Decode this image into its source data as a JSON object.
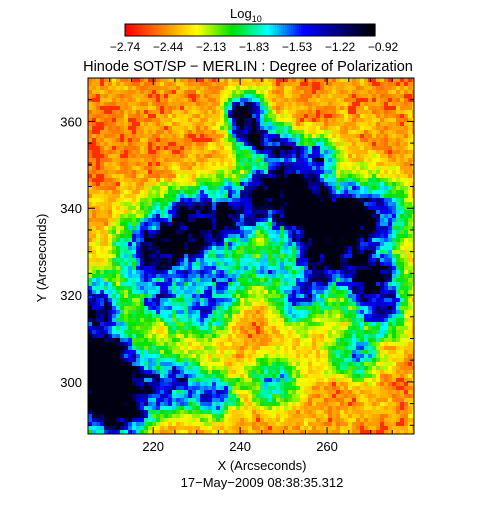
{
  "chart_data": {
    "type": "heatmap",
    "title": "Hinode SOT/SP − MERLIN : Degree of Polarization",
    "colorbar": {
      "label_base": "Log",
      "label_subscript": "10",
      "tick_labels": [
        "−2.74",
        "−2.44",
        "−2.13",
        "−1.83",
        "−1.53",
        "−1.22",
        "−0.92"
      ],
      "range": [
        -2.74,
        -0.92
      ],
      "colormap": [
        "#ff0000",
        "#ff8000",
        "#ffff00",
        "#00e000",
        "#00ffff",
        "#0000ff",
        "#000080",
        "#000000"
      ],
      "position": "top"
    },
    "xlabel": "X (Arcseconds)",
    "ylabel": "Y (Arcseconds)",
    "x_ticks": [
      220,
      240,
      260
    ],
    "y_ticks": [
      300,
      320,
      340,
      360
    ],
    "xlim": [
      205,
      280
    ],
    "ylim": [
      288,
      370
    ],
    "grid": false,
    "date_label": "17−May−2009 08:38:35.312"
  }
}
